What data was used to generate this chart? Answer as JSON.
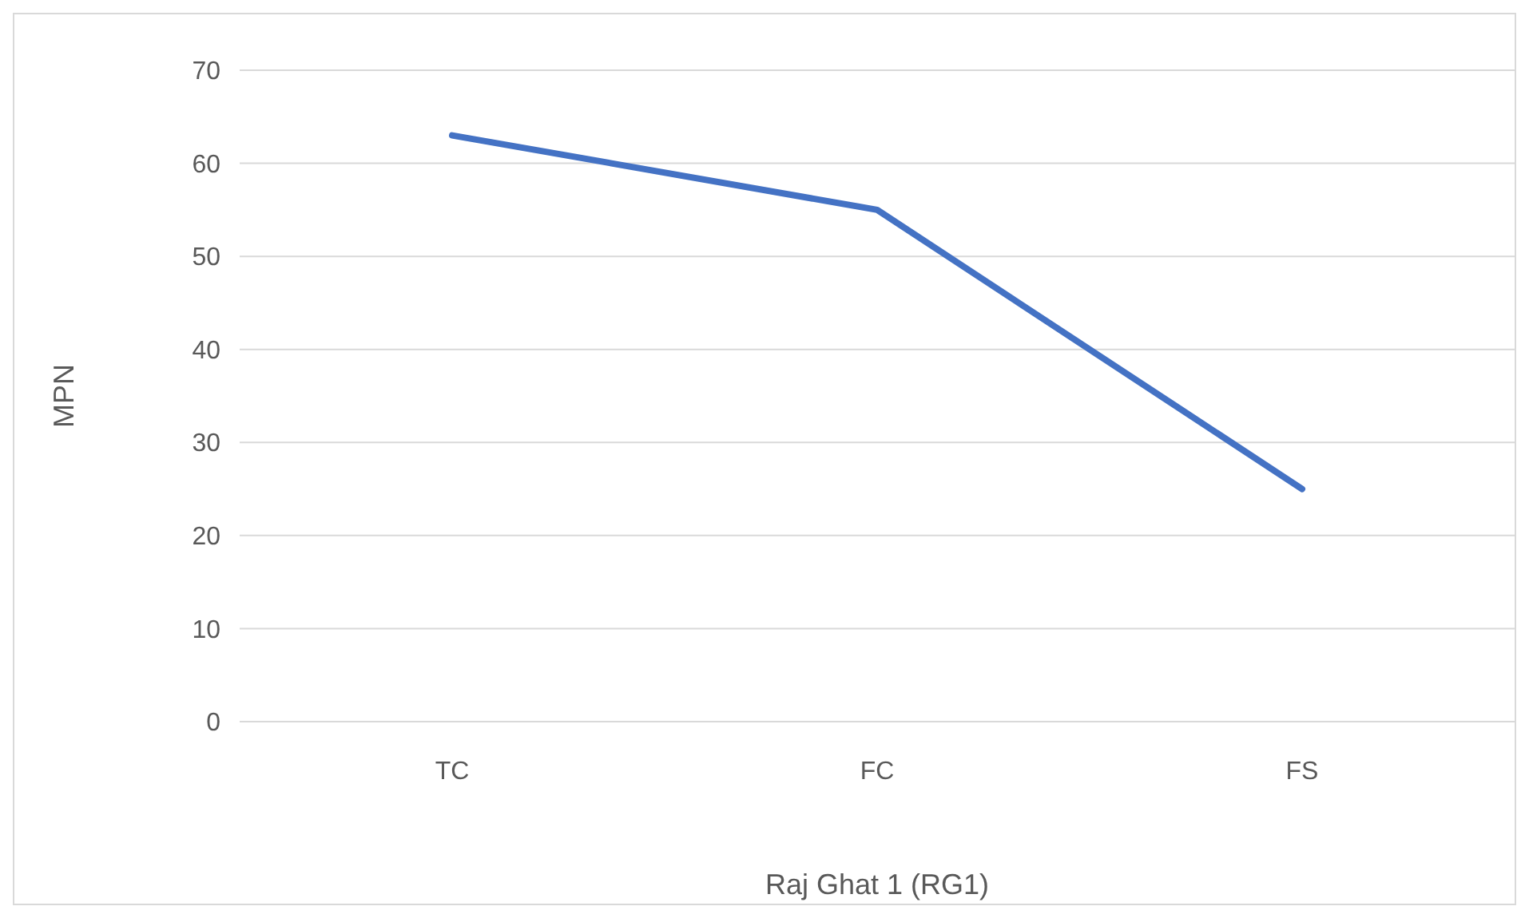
{
  "chart_data": {
    "type": "line",
    "xlabel": "Raj Ghat 1 (RG1)",
    "ylabel": "MPN",
    "categories": [
      "TC",
      "FC",
      "FS"
    ],
    "series": [
      {
        "color": "#4472c4",
        "values": [
          63,
          55,
          25
        ]
      }
    ],
    "ylim": [
      0,
      70
    ],
    "yticks": [
      0,
      10,
      20,
      30,
      40,
      50,
      60,
      70
    ],
    "grid": "y",
    "marker": "none",
    "line_style": "solid"
  }
}
